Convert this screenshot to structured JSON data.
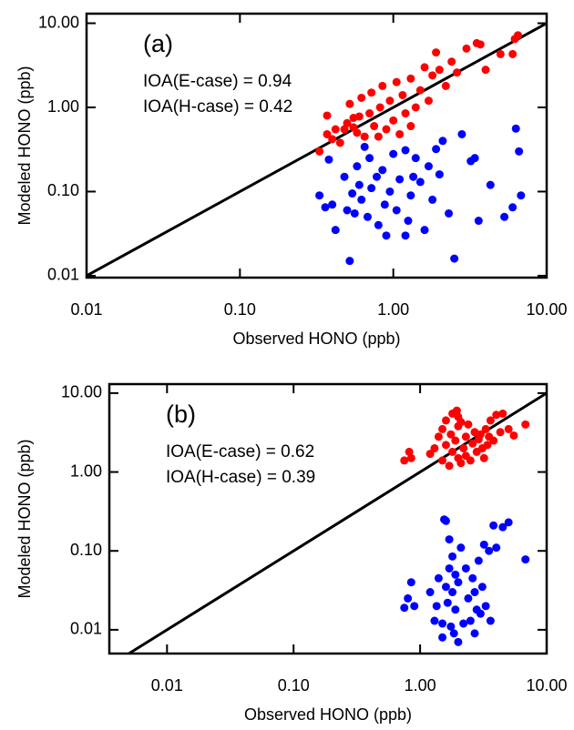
{
  "chart_data": [
    {
      "type": "scatter",
      "xlabel": "Observed HONO (ppb)",
      "ylabel": "Modeled HONO (ppb)",
      "xscale": "log",
      "yscale": "log",
      "xlim": [
        0.01,
        10
      ],
      "ylim": [
        0.0095,
        13
      ],
      "xticks": [
        0.01,
        {
          "value": 0.1,
          "label": "0.10"
        },
        {
          "value": 1,
          "label": "1.00"
        },
        {
          "value": 10,
          "label": "10.00"
        }
      ],
      "yticks": [
        0.01,
        {
          "value": 0.1,
          "label": "0.10"
        },
        {
          "value": 1,
          "label": "1.00"
        },
        {
          "value": 10,
          "label": "10.00"
        }
      ],
      "annotations": [
        {
          "text": "(a)",
          "color": "#000000"
        },
        {
          "text": "IOA(E-case) = 0.94",
          "color": "#ff0000"
        },
        {
          "text": "IOA(H-case) = 0.42",
          "color": "#0000ff"
        }
      ],
      "series": [
        {
          "color": "#ff0000",
          "x": [
            0.33,
            0.37,
            0.37,
            0.4,
            0.42,
            0.45,
            0.48,
            0.5,
            0.52,
            0.55,
            0.58,
            0.6,
            0.62,
            0.65,
            0.7,
            0.72,
            0.75,
            0.8,
            0.82,
            0.85,
            0.9,
            0.95,
            1.0,
            1.05,
            1.1,
            1.15,
            1.2,
            1.3,
            1.4,
            1.5,
            1.6,
            1.7,
            1.8,
            1.9,
            2.0,
            2.2,
            2.4,
            2.6,
            3.0,
            3.5,
            3.7,
            4.0,
            5.0,
            6.0,
            6.2,
            6.5,
            0.55,
            1.3
          ],
          "values": [
            0.3,
            0.48,
            0.8,
            0.42,
            0.55,
            0.38,
            0.55,
            0.65,
            1.1,
            0.58,
            0.5,
            0.78,
            1.3,
            0.45,
            0.85,
            1.5,
            0.6,
            0.45,
            1.0,
            1.8,
            0.55,
            1.2,
            0.7,
            2.0,
            0.48,
            1.4,
            0.85,
            2.2,
            1.0,
            1.6,
            3.0,
            1.2,
            2.4,
            4.5,
            2.8,
            1.8,
            3.5,
            2.6,
            5.0,
            5.8,
            5.6,
            2.8,
            4.3,
            4.3,
            6.5,
            7.2,
            0.75,
            0.6
          ]
        },
        {
          "color": "#0000ff",
          "x": [
            0.38,
            0.4,
            0.42,
            0.33,
            0.36,
            0.48,
            0.5,
            0.52,
            0.54,
            0.56,
            0.58,
            0.6,
            0.62,
            0.65,
            0.68,
            0.7,
            0.72,
            0.78,
            0.8,
            0.85,
            0.88,
            0.9,
            0.95,
            1.0,
            1.05,
            1.1,
            1.2,
            1.25,
            1.3,
            1.4,
            1.5,
            1.6,
            1.7,
            1.8,
            1.9,
            2.0,
            2.1,
            2.3,
            2.5,
            2.8,
            3.2,
            3.4,
            3.6,
            4.3,
            5.3,
            6.0,
            6.3,
            6.6,
            6.8,
            1.2,
            1.35
          ],
          "values": [
            0.24,
            0.07,
            0.035,
            0.09,
            0.065,
            0.15,
            0.06,
            0.015,
            0.095,
            0.055,
            0.2,
            0.12,
            0.08,
            0.34,
            0.05,
            0.25,
            0.11,
            0.15,
            0.04,
            0.18,
            0.07,
            0.03,
            0.1,
            0.28,
            0.06,
            0.14,
            0.31,
            0.045,
            0.09,
            0.25,
            0.13,
            0.035,
            0.2,
            0.08,
            0.32,
            0.16,
            0.4,
            0.055,
            0.016,
            0.48,
            0.23,
            0.25,
            0.045,
            0.12,
            0.05,
            0.065,
            0.56,
            0.3,
            0.09,
            0.03,
            0.15
          ]
        }
      ]
    },
    {
      "type": "scatter",
      "xlabel": "Observed HONO (ppb)",
      "ylabel": "Modeled HONO (ppb)",
      "xscale": "log",
      "yscale": "log",
      "xlim": [
        0.0035,
        10
      ],
      "ylim": [
        0.005,
        13
      ],
      "xticks": [
        0.01,
        {
          "value": 0.1,
          "label": "0.10"
        },
        {
          "value": 1,
          "label": "1.00"
        },
        {
          "value": 10,
          "label": "10.00"
        }
      ],
      "yticks": [
        0.01,
        {
          "value": 0.1,
          "label": "0.10"
        },
        {
          "value": 1,
          "label": "1.00"
        },
        {
          "value": 10,
          "label": "10.00"
        }
      ],
      "annotations": [
        {
          "text": "(b)",
          "color": "#000000"
        },
        {
          "text": "IOA(E-case) = 0.62",
          "color": "#ff0000"
        },
        {
          "text": "IOA(H-case) = 0.39",
          "color": "#0000ff"
        }
      ],
      "series": [
        {
          "color": "#ff0000",
          "x": [
            0.75,
            0.82,
            0.85,
            1.2,
            1.4,
            1.5,
            1.5,
            1.6,
            1.6,
            1.7,
            1.75,
            1.8,
            1.8,
            1.9,
            1.95,
            2.0,
            2.0,
            2.1,
            2.1,
            2.2,
            2.3,
            2.3,
            2.4,
            2.5,
            2.6,
            2.7,
            2.8,
            2.9,
            3.0,
            3.1,
            3.2,
            3.3,
            3.4,
            3.5,
            3.6,
            3.8,
            4.0,
            4.3,
            4.5,
            5.0,
            5.5,
            6.8,
            2.0,
            1.3
          ],
          "values": [
            1.4,
            1.8,
            1.5,
            1.7,
            2.8,
            3.5,
            1.4,
            2.2,
            4.5,
            1.2,
            3.0,
            5.5,
            1.8,
            2.5,
            6.0,
            1.5,
            3.8,
            1.3,
            4.3,
            2.0,
            1.6,
            2.8,
            4.0,
            1.4,
            2.3,
            3.2,
            1.8,
            2.6,
            3.0,
            2.0,
            1.5,
            3.5,
            2.2,
            2.8,
            4.5,
            2.5,
            5.3,
            3.2,
            5.5,
            3.5,
            2.9,
            4.0,
            5.0,
            2.0
          ]
        },
        {
          "color": "#0000ff",
          "x": [
            0.75,
            0.8,
            0.85,
            0.9,
            1.2,
            1.3,
            1.35,
            1.4,
            1.5,
            1.55,
            1.6,
            1.6,
            1.65,
            1.7,
            1.7,
            1.75,
            1.8,
            1.8,
            1.85,
            1.9,
            1.9,
            2.0,
            2.0,
            2.1,
            2.2,
            2.3,
            2.4,
            2.5,
            2.6,
            2.7,
            2.8,
            2.9,
            3.0,
            3.1,
            3.2,
            3.3,
            3.5,
            3.6,
            3.8,
            4.0,
            4.5,
            5.0,
            6.8,
            1.5,
            2.7
          ],
          "values": [
            0.019,
            0.025,
            0.04,
            0.02,
            0.03,
            0.013,
            0.02,
            0.045,
            0.012,
            0.25,
            0.035,
            0.24,
            0.022,
            0.06,
            0.14,
            0.011,
            0.085,
            0.03,
            0.009,
            0.05,
            0.018,
            0.007,
            0.04,
            0.11,
            0.012,
            0.06,
            0.025,
            0.013,
            0.045,
            0.03,
            0.018,
            0.075,
            0.016,
            0.035,
            0.12,
            0.02,
            0.1,
            0.013,
            0.21,
            0.11,
            0.2,
            0.23,
            0.078,
            0.008,
            0.009
          ]
        }
      ]
    }
  ]
}
